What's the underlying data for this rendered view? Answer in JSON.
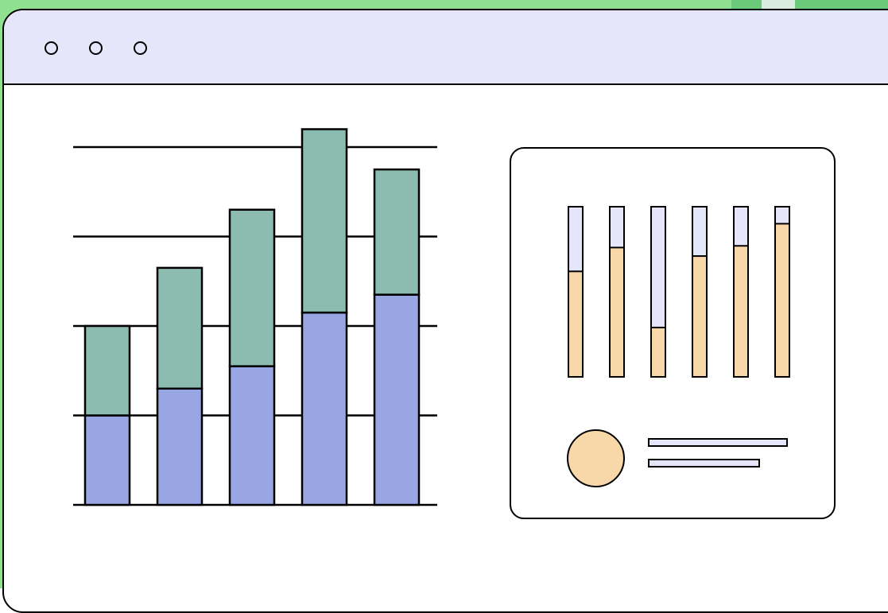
{
  "colors": {
    "background": "#8fe090",
    "background_right": "#6bc97a",
    "background_light_patch": "#d9ecdf",
    "titlebar": "#e6e6fb",
    "bar_bottom": "#98a6e4",
    "bar_top": "#8cbcb0",
    "mini_fill": "#f8d8a8",
    "mini_track": "#e6e6fb",
    "avatar": "#f8d8a8",
    "text_line": "#e6e6fb",
    "gridline": "#000000"
  },
  "window": {
    "controls": [
      {
        "name": "close",
        "icon": "circle-outline-icon"
      },
      {
        "name": "minimize",
        "icon": "circle-outline-icon"
      },
      {
        "name": "maximize",
        "icon": "circle-outline-icon"
      }
    ]
  },
  "chart_data": [
    {
      "type": "bar",
      "stacked": true,
      "title": "",
      "xlabel": "",
      "ylabel": "",
      "ylim": [
        0,
        4.2
      ],
      "grid": true,
      "gridlines": [
        0,
        1,
        2,
        3,
        4
      ],
      "categories": [
        "",
        "",
        "",
        "",
        ""
      ],
      "series": [
        {
          "values": [
            1.0,
            1.3,
            1.55,
            2.15,
            2.35
          ]
        },
        {
          "values": [
            1.0,
            1.35,
            1.75,
            2.05,
            1.4
          ]
        }
      ]
    },
    {
      "type": "bar",
      "horizontal": false,
      "stacked_to_full": true,
      "title": "",
      "ylim": [
        0,
        1
      ],
      "categories": [
        "",
        "",
        "",
        "",
        "",
        ""
      ],
      "values": [
        0.62,
        0.76,
        0.29,
        0.71,
        0.77,
        0.9
      ]
    }
  ],
  "legend_card": {
    "avatar_icon": "circle-avatar-icon",
    "lines": [
      {
        "width_fraction": 1.0
      },
      {
        "width_fraction": 0.8
      }
    ]
  }
}
